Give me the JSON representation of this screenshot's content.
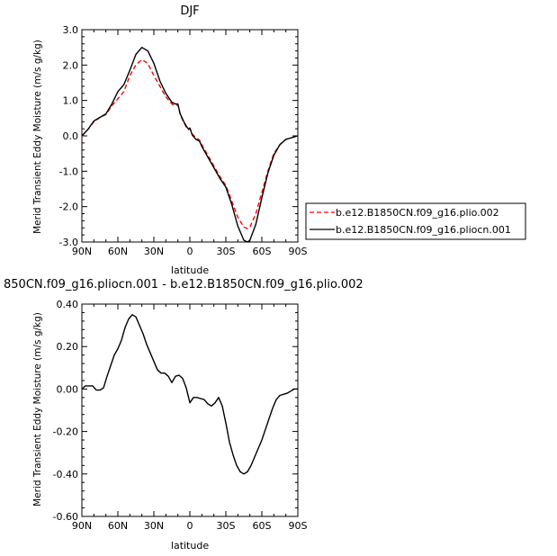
{
  "chart_data": [
    {
      "type": "line",
      "title": "DJF",
      "xlabel": "latitude",
      "ylabel": "Merid Transient Eddy Moisture  (m/s g/kg)",
      "xlim": [
        90,
        -90
      ],
      "ylim": [
        -3.0,
        3.0
      ],
      "x_ticks": [
        "90N",
        "60N",
        "30N",
        "0",
        "30S",
        "60S",
        "90S"
      ],
      "y_ticks": [
        "3.0",
        "2.0",
        "1.0",
        "0.0",
        "-1.0",
        "-2.0",
        "-3.0"
      ],
      "legend_position": "right",
      "series": [
        {
          "name": "b.e12.B1850CN.f09_g16.plio.002",
          "color": "#ff0000",
          "dashed": true,
          "x": [
            90,
            85,
            80,
            75,
            70,
            65,
            60,
            55,
            50,
            45,
            40,
            35,
            30,
            25,
            20,
            15,
            12,
            10,
            8,
            5,
            3,
            1,
            0,
            -2,
            -5,
            -8,
            -10,
            -15,
            -20,
            -25,
            -30,
            -35,
            -40,
            -45,
            -48,
            -50,
            -55,
            -60,
            -65,
            -70,
            -75,
            -80,
            -85,
            -90
          ],
          "y": [
            0.0,
            0.18,
            0.4,
            0.52,
            0.6,
            0.85,
            1.05,
            1.25,
            1.7,
            2.0,
            2.15,
            2.05,
            1.7,
            1.4,
            1.1,
            0.9,
            0.85,
            0.88,
            0.6,
            0.38,
            0.25,
            0.2,
            0.22,
            0.05,
            -0.05,
            -0.12,
            -0.25,
            -0.55,
            -0.85,
            -1.15,
            -1.4,
            -1.85,
            -2.3,
            -2.58,
            -2.62,
            -2.58,
            -2.2,
            -1.6,
            -1.0,
            -0.5,
            -0.25,
            -0.1,
            -0.05,
            0.0
          ]
        },
        {
          "name": "b.e12.B1850CN.f09_g16.pliocn.001",
          "color": "#000000",
          "dashed": false,
          "x": [
            90,
            85,
            80,
            75,
            70,
            65,
            60,
            55,
            50,
            45,
            40,
            35,
            30,
            25,
            20,
            15,
            12,
            10,
            8,
            5,
            3,
            1,
            0,
            -2,
            -5,
            -8,
            -10,
            -15,
            -20,
            -25,
            -30,
            -35,
            -40,
            -45,
            -48,
            -50,
            -55,
            -60,
            -65,
            -70,
            -75,
            -80,
            -85,
            -90
          ],
          "y": [
            0.0,
            0.18,
            0.42,
            0.52,
            0.62,
            0.9,
            1.25,
            1.45,
            1.85,
            2.3,
            2.5,
            2.4,
            2.05,
            1.55,
            1.2,
            0.95,
            0.9,
            0.9,
            0.62,
            0.4,
            0.28,
            0.18,
            0.22,
            0.02,
            -0.1,
            -0.15,
            -0.3,
            -0.6,
            -0.9,
            -1.2,
            -1.45,
            -1.95,
            -2.55,
            -2.95,
            -3.0,
            -2.95,
            -2.5,
            -1.75,
            -1.05,
            -0.55,
            -0.25,
            -0.1,
            -0.05,
            0.0
          ]
        }
      ]
    },
    {
      "type": "line",
      "title": "850CN.f09_g16.pliocn.001 - b.e12.B1850CN.f09_g16.plio.002",
      "xlabel": "latitude",
      "ylabel": "Merid Transient Eddy Moisture  (m/s g/kg)",
      "xlim": [
        90,
        -90
      ],
      "ylim": [
        -0.6,
        0.4
      ],
      "x_ticks": [
        "90N",
        "60N",
        "30N",
        "0",
        "30S",
        "60S",
        "90S"
      ],
      "y_ticks": [
        "0.40",
        "0.20",
        "0.00",
        "-0.20",
        "-0.40",
        "-0.60"
      ],
      "series": [
        {
          "color": "#000000",
          "dashed": false,
          "x": [
            90,
            87,
            84,
            81,
            78,
            75,
            72,
            69,
            66,
            63,
            60,
            57,
            54,
            51,
            48,
            45,
            42,
            39,
            36,
            33,
            30,
            27,
            24,
            21,
            18,
            15,
            12,
            9,
            6,
            3,
            0,
            -3,
            -6,
            -9,
            -12,
            -15,
            -18,
            -21,
            -24,
            -27,
            -30,
            -33,
            -36,
            -39,
            -42,
            -45,
            -48,
            -51,
            -54,
            -57,
            -60,
            -63,
            -66,
            -69,
            -72,
            -75,
            -78,
            -81,
            -84,
            -87,
            -90
          ],
          "y": [
            0.0,
            0.015,
            0.015,
            0.015,
            -0.005,
            -0.005,
            0.005,
            0.06,
            0.11,
            0.16,
            0.19,
            0.23,
            0.29,
            0.33,
            0.35,
            0.34,
            0.3,
            0.26,
            0.21,
            0.17,
            0.13,
            0.09,
            0.075,
            0.075,
            0.06,
            0.03,
            0.06,
            0.065,
            0.05,
            0.005,
            -0.065,
            -0.04,
            -0.04,
            -0.045,
            -0.05,
            -0.07,
            -0.08,
            -0.065,
            -0.04,
            -0.08,
            -0.16,
            -0.25,
            -0.31,
            -0.36,
            -0.39,
            -0.4,
            -0.39,
            -0.36,
            -0.32,
            -0.28,
            -0.24,
            -0.19,
            -0.14,
            -0.09,
            -0.05,
            -0.03,
            -0.025,
            -0.02,
            -0.01,
            0.0,
            0.0
          ]
        }
      ]
    }
  ]
}
